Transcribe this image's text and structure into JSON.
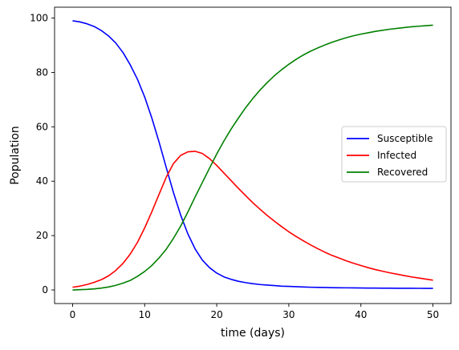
{
  "chart_data": {
    "type": "line",
    "title": "",
    "xlabel": "time (days)",
    "ylabel": "Population",
    "xlim": [
      -2.5,
      52.5
    ],
    "ylim": [
      -5,
      104
    ],
    "xticks": [
      0,
      10,
      20,
      30,
      40,
      50
    ],
    "yticks": [
      0,
      20,
      40,
      60,
      80,
      100
    ],
    "grid": false,
    "legend_position": "center-right",
    "x": [
      0,
      1,
      2,
      3,
      4,
      5,
      6,
      7,
      8,
      9,
      10,
      11,
      12,
      13,
      14,
      15,
      16,
      17,
      18,
      19,
      20,
      21,
      22,
      23,
      24,
      25,
      26,
      27,
      28,
      29,
      30,
      31,
      32,
      33,
      34,
      35,
      36,
      37,
      38,
      39,
      40,
      41,
      42,
      43,
      44,
      45,
      46,
      47,
      48,
      49,
      50
    ],
    "series": [
      {
        "name": "Susceptible",
        "color": "#0000ff",
        "values": [
          99.0,
          98.6,
          97.9,
          96.9,
          95.4,
          93.4,
          90.8,
          87.3,
          82.8,
          77.5,
          71.0,
          63.2,
          54.4,
          45.0,
          35.8,
          27.5,
          20.6,
          15.1,
          11.0,
          8.2,
          6.2,
          4.8,
          3.9,
          3.2,
          2.7,
          2.3,
          2.0,
          1.8,
          1.6,
          1.4,
          1.3,
          1.2,
          1.1,
          1.0,
          0.95,
          0.9,
          0.85,
          0.8,
          0.78,
          0.75,
          0.72,
          0.7,
          0.68,
          0.66,
          0.65,
          0.63,
          0.62,
          0.61,
          0.6,
          0.59,
          0.58
        ]
      },
      {
        "name": "Infected",
        "color": "#ff0000",
        "values": [
          1.0,
          1.4,
          2.0,
          2.8,
          3.8,
          5.2,
          7.2,
          9.8,
          13.2,
          17.5,
          22.8,
          28.8,
          35.2,
          41.5,
          46.5,
          49.5,
          50.8,
          51.0,
          50.2,
          48.3,
          45.8,
          43.0,
          40.2,
          37.4,
          34.7,
          32.1,
          29.7,
          27.4,
          25.3,
          23.3,
          21.4,
          19.7,
          18.1,
          16.6,
          15.2,
          13.9,
          12.7,
          11.7,
          10.7,
          9.8,
          9.0,
          8.2,
          7.5,
          6.9,
          6.3,
          5.8,
          5.3,
          4.8,
          4.4,
          4.0,
          3.6
        ]
      },
      {
        "name": "Recovered",
        "color": "#008000",
        "values": [
          0.0,
          0.1,
          0.2,
          0.4,
          0.7,
          1.1,
          1.7,
          2.5,
          3.5,
          5.0,
          6.8,
          9.0,
          11.8,
          15.0,
          19.0,
          23.5,
          28.7,
          34.2,
          39.5,
          44.8,
          50.0,
          54.8,
          59.2,
          63.2,
          67.0,
          70.4,
          73.5,
          76.3,
          78.8,
          81.0,
          83.0,
          84.8,
          86.4,
          87.8,
          89.0,
          90.1,
          91.1,
          92.0,
          92.8,
          93.5,
          94.1,
          94.6,
          95.1,
          95.5,
          95.9,
          96.2,
          96.5,
          96.8,
          97.0,
          97.2,
          97.4
        ]
      }
    ]
  }
}
